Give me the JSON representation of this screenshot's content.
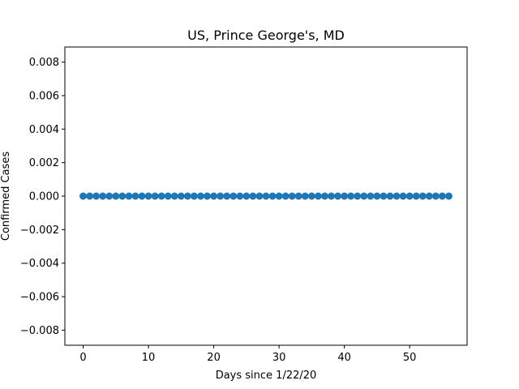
{
  "chart_data": {
    "type": "scatter",
    "title": "US, Prince George's, MD",
    "xlabel": "Days since 1/22/20",
    "ylabel": "Confirmed Cases",
    "x": [
      0,
      1,
      2,
      3,
      4,
      5,
      6,
      7,
      8,
      9,
      10,
      11,
      12,
      13,
      14,
      15,
      16,
      17,
      18,
      19,
      20,
      21,
      22,
      23,
      24,
      25,
      26,
      27,
      28,
      29,
      30,
      31,
      32,
      33,
      34,
      35,
      36,
      37,
      38,
      39,
      40,
      41,
      42,
      43,
      44,
      45,
      46,
      47,
      48,
      49,
      50,
      51,
      52,
      53,
      54,
      55,
      56
    ],
    "y": [
      0,
      0,
      0,
      0,
      0,
      0,
      0,
      0,
      0,
      0,
      0,
      0,
      0,
      0,
      0,
      0,
      0,
      0,
      0,
      0,
      0,
      0,
      0,
      0,
      0,
      0,
      0,
      0,
      0,
      0,
      0,
      0,
      0,
      0,
      0,
      0,
      0,
      0,
      0,
      0,
      0,
      0,
      0,
      0,
      0,
      0,
      0,
      0,
      0,
      0,
      0,
      0,
      0,
      0,
      0,
      0,
      0
    ],
    "xlim": [
      -2.8,
      58.8
    ],
    "ylim": [
      -0.0089,
      0.0089
    ],
    "xticks": [
      0,
      10,
      20,
      30,
      40,
      50
    ],
    "xtick_labels": [
      "0",
      "10",
      "20",
      "30",
      "40",
      "50"
    ],
    "yticks": [
      -0.008,
      -0.006,
      -0.004,
      -0.002,
      0.0,
      0.002,
      0.004,
      0.006,
      0.008
    ],
    "ytick_labels": [
      "−0.008",
      "−0.006",
      "−0.004",
      "−0.002",
      "0.000",
      "0.002",
      "0.004",
      "0.006",
      "0.008"
    ],
    "grid": false,
    "marker_color": "#1f77b4"
  }
}
